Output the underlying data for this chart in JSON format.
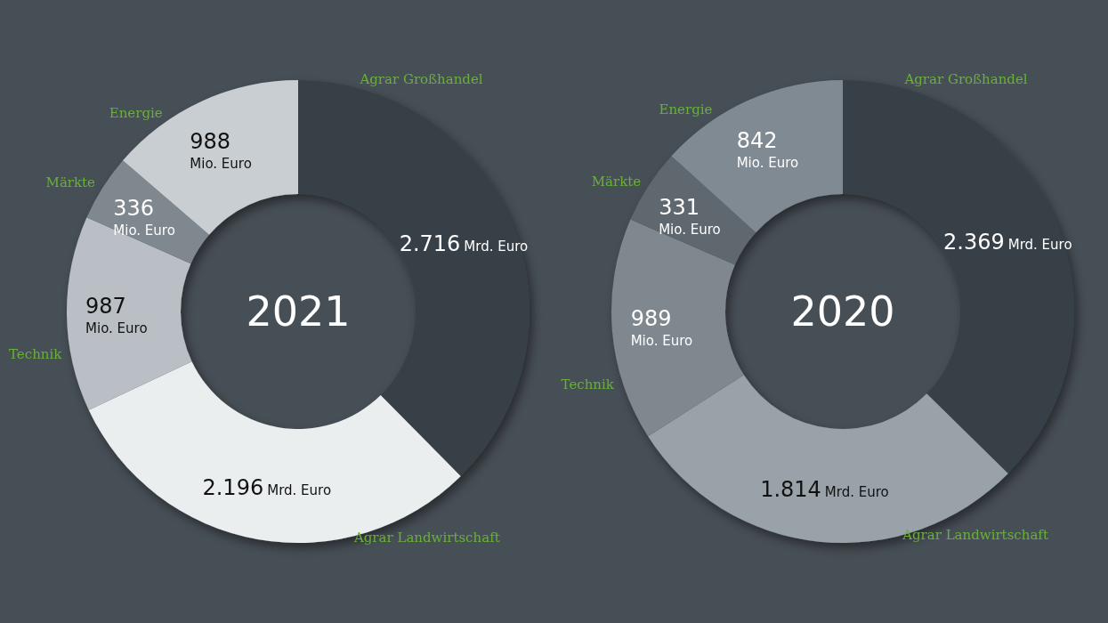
{
  "chart_data": [
    {
      "type": "donut",
      "title": "2021",
      "categories": [
        "Agrar Großhandel",
        "Agrar Landwirtschaft",
        "Technik",
        "Märkte",
        "Energie"
      ],
      "values": [
        2716,
        2196,
        987,
        336,
        988
      ],
      "colors": [
        "#394146",
        "#eaeeef",
        "#b9bfc4",
        "#7f888e",
        "#c9ced3"
      ],
      "value_labels": [
        "2.716 Mrd. Euro",
        "2.196 Mrd. Euro",
        "987 Mio. Euro",
        "336 Mio. Euro",
        "988 Mio. Euro"
      ]
    },
    {
      "type": "donut",
      "title": "2020",
      "categories": [
        "Agrar Großhandel",
        "Agrar Landwirtschaft",
        "Technik",
        "Märkte",
        "Energie"
      ],
      "values": [
        2369,
        1814,
        989,
        331,
        842
      ],
      "colors": [
        "#394146",
        "#98a2a8",
        "#7f888e",
        "#5f686e",
        "#7f8a92"
      ],
      "value_labels": [
        "2.369 Mrd. Euro",
        "1.814 Mrd. Euro",
        "989 Mio. Euro",
        "331 Mio. Euro",
        "842 Mio. Euro"
      ]
    }
  ]
}
